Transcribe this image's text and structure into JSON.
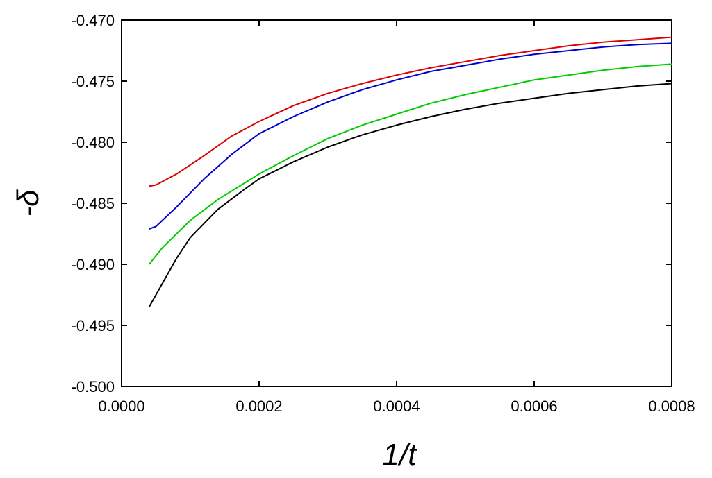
{
  "chart_data": {
    "type": "line",
    "xlabel": "1/t",
    "ylabel": "-δ",
    "xlim": [
      0.0,
      0.0008
    ],
    "ylim": [
      -0.5,
      -0.47
    ],
    "x_ticks": [
      "0.0000",
      "0.0002",
      "0.0004",
      "0.0006",
      "0.0008"
    ],
    "y_ticks": [
      "-0.470",
      "-0.475",
      "-0.480",
      "-0.485",
      "-0.490",
      "-0.495",
      "-0.500"
    ],
    "grid": false,
    "legend": "none",
    "series": [
      {
        "color": "#dd0000",
        "x": [
          4e-05,
          5e-05,
          8e-05,
          0.00012,
          0.00016,
          0.0002,
          0.00025,
          0.0003,
          0.00035,
          0.0004,
          0.00045,
          0.0005,
          0.00055,
          0.0006,
          0.00065,
          0.0007,
          0.00075,
          0.0008
        ],
        "y": [
          -0.4836,
          -0.4835,
          -0.4826,
          -0.4811,
          -0.4795,
          -0.4783,
          -0.477,
          -0.476,
          -0.4752,
          -0.4745,
          -0.4739,
          -0.4734,
          -0.4729,
          -0.4725,
          -0.4721,
          -0.4718,
          -0.4716,
          -0.4714
        ]
      },
      {
        "color": "#0000cc",
        "x": [
          4e-05,
          5e-05,
          8e-05,
          0.00012,
          0.00016,
          0.0002,
          0.00025,
          0.0003,
          0.00035,
          0.0004,
          0.00045,
          0.0005,
          0.00055,
          0.0006,
          0.00065,
          0.0007,
          0.00075,
          0.0008
        ],
        "y": [
          -0.4871,
          -0.4869,
          -0.4853,
          -0.483,
          -0.481,
          -0.4793,
          -0.4779,
          -0.4767,
          -0.4757,
          -0.4749,
          -0.4742,
          -0.4737,
          -0.4732,
          -0.4728,
          -0.4725,
          -0.4722,
          -0.472,
          -0.4719
        ]
      },
      {
        "color": "#00cc00",
        "x": [
          4e-05,
          6e-05,
          0.0001,
          0.00014,
          0.00018,
          0.0002,
          0.00025,
          0.0003,
          0.00035,
          0.0004,
          0.00045,
          0.0005,
          0.00055,
          0.0006,
          0.00065,
          0.0007,
          0.00075,
          0.0008
        ],
        "y": [
          -0.49,
          -0.4886,
          -0.4864,
          -0.4847,
          -0.4833,
          -0.4826,
          -0.4811,
          -0.4797,
          -0.4786,
          -0.4777,
          -0.4768,
          -0.4761,
          -0.4755,
          -0.4749,
          -0.4745,
          -0.4741,
          -0.4738,
          -0.4736
        ]
      },
      {
        "color": "#000000",
        "x": [
          4e-05,
          5e-05,
          8e-05,
          0.0001,
          0.00014,
          0.00018,
          0.0002,
          0.00025,
          0.0003,
          0.00035,
          0.0004,
          0.00045,
          0.0005,
          0.00055,
          0.0006,
          0.00065,
          0.0007,
          0.00075,
          0.0008
        ],
        "y": [
          -0.4935,
          -0.4925,
          -0.4895,
          -0.4878,
          -0.4855,
          -0.4838,
          -0.483,
          -0.4816,
          -0.4804,
          -0.4794,
          -0.4786,
          -0.4779,
          -0.4773,
          -0.4768,
          -0.4764,
          -0.476,
          -0.4757,
          -0.4754,
          -0.4752
        ]
      }
    ]
  }
}
